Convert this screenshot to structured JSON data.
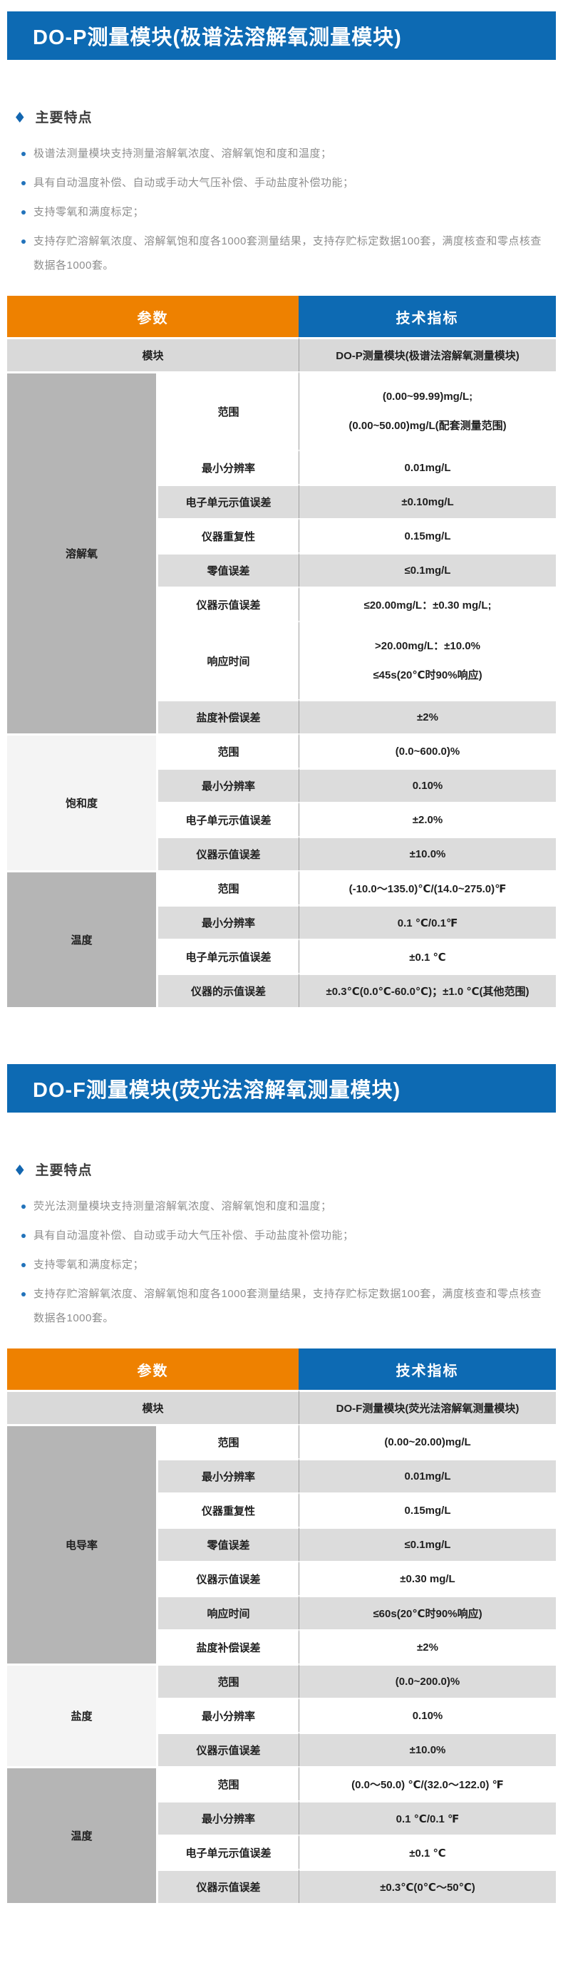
{
  "colors": {
    "primary_blue": "#0d6ab3",
    "header_orange": "#ee8100",
    "row_gray": "#dcdcdc",
    "module_row_gray": "#d9d9d9",
    "group_dark_gray": "#b5b5b5",
    "group_light_gray": "#f4f4f4",
    "feature_text_gray": "#8e8e8e"
  },
  "sections": [
    {
      "banner": "DO-P测量模块(极谱法溶解氧测量模块)",
      "features_title": "主要特点",
      "features": [
        "极谱法测量模块支持测量溶解氧浓度、溶解氧饱和度和温度；",
        "具有自动温度补偿、自动或手动大气压补偿、手动盐度补偿功能；",
        "支持零氧和满度标定；",
        "支持存贮溶解氧浓度、溶解氧饱和度各1000套测量结果，支持存贮标定数据100套，满度核查和零点核查数据各1000套。"
      ],
      "table": {
        "headers": [
          "参数",
          "技术指标"
        ],
        "module_row": {
          "param": "模块",
          "value": "DO-P测量模块(极谱法溶解氧测量模块)"
        },
        "groups": [
          {
            "name": "溶解氧",
            "shade": "dark",
            "rows": [
              {
                "param": "范围",
                "value_lines": [
                  "(0.00~99.99)mg/L;",
                  "(0.00~50.00)mg/L(配套测量范围)"
                ],
                "bg": "white",
                "tall": true
              },
              {
                "param": "最小分辨率",
                "value_lines": [
                  "0.01mg/L"
                ],
                "bg": "white"
              },
              {
                "param": "电子单元示值误差",
                "value_lines": [
                  "±0.10mg/L"
                ],
                "bg": "gray"
              },
              {
                "param": "仪器重复性",
                "value_lines": [
                  "0.15mg/L"
                ],
                "bg": "white"
              },
              {
                "param": "零值误差",
                "value_lines": [
                  "≤0.1mg/L"
                ],
                "bg": "gray"
              },
              {
                "param": "仪器示值误差",
                "value_lines": [
                  "≤20.00mg/L：±0.30 mg/L;"
                ],
                "bg": "white"
              },
              {
                "param": "响应时间",
                "value_lines": [
                  ">20.00mg/L：±10.0%",
                  "≤45s(20℃时90%响应)"
                ],
                "bg": "white",
                "tall": true
              },
              {
                "param": "盐度补偿误差",
                "value_lines": [
                  "±2%"
                ],
                "bg": "gray"
              }
            ]
          },
          {
            "name": "饱和度",
            "shade": "light",
            "rows": [
              {
                "param": "范围",
                "value_lines": [
                  "(0.0~600.0)%"
                ],
                "bg": "white"
              },
              {
                "param": "最小分辨率",
                "value_lines": [
                  "0.10%"
                ],
                "bg": "gray"
              },
              {
                "param": "电子单元示值误差",
                "value_lines": [
                  "±2.0%"
                ],
                "bg": "white"
              },
              {
                "param": "仪器示值误差",
                "value_lines": [
                  "±10.0%"
                ],
                "bg": "gray"
              }
            ]
          },
          {
            "name": "温度",
            "shade": "dark",
            "rows": [
              {
                "param": "范围",
                "value_lines": [
                  "(-10.0～135.0)℃/(14.0~275.0)℉"
                ],
                "bg": "white"
              },
              {
                "param": "最小分辨率",
                "value_lines": [
                  "0.1 ℃/0.1℉"
                ],
                "bg": "gray"
              },
              {
                "param": "电子单元示值误差",
                "value_lines": [
                  "±0.1 ℃"
                ],
                "bg": "white"
              },
              {
                "param": "仪器的示值误差",
                "value_lines": [
                  "±0.3℃(0.0℃-60.0℃)；±1.0 ℃(其他范围)"
                ],
                "bg": "gray"
              }
            ]
          }
        ]
      }
    },
    {
      "banner": "DO-F测量模块(荧光法溶解氧测量模块)",
      "features_title": "主要特点",
      "features": [
        "荧光法测量模块支持测量溶解氧浓度、溶解氧饱和度和温度；",
        "具有自动温度补偿、自动或手动大气压补偿、手动盐度补偿功能；",
        "支持零氧和满度标定；",
        "支持存贮溶解氧浓度、溶解氧饱和度各1000套测量结果，支持存贮标定数据100套，满度核查和零点核查数据各1000套。"
      ],
      "table": {
        "headers": [
          "参数",
          "技术指标"
        ],
        "module_row": {
          "param": "模块",
          "value": "DO-F测量模块(荧光法溶解氧测量模块)"
        },
        "groups": [
          {
            "name": "电导率",
            "shade": "dark",
            "rows": [
              {
                "param": "范围",
                "value_lines": [
                  "(0.00~20.00)mg/L"
                ],
                "bg": "white"
              },
              {
                "param": "最小分辨率",
                "value_lines": [
                  "0.01mg/L"
                ],
                "bg": "gray"
              },
              {
                "param": "仪器重复性",
                "value_lines": [
                  "0.15mg/L"
                ],
                "bg": "white"
              },
              {
                "param": "零值误差",
                "value_lines": [
                  "≤0.1mg/L"
                ],
                "bg": "gray"
              },
              {
                "param": "仪器示值误差",
                "value_lines": [
                  "±0.30 mg/L"
                ],
                "bg": "white"
              },
              {
                "param": "响应时间",
                "value_lines": [
                  "≤60s(20℃时90%响应)"
                ],
                "bg": "gray"
              },
              {
                "param": "盐度补偿误差",
                "value_lines": [
                  "±2%"
                ],
                "bg": "white"
              }
            ]
          },
          {
            "name": "盐度",
            "shade": "light",
            "rows": [
              {
                "param": "范围",
                "value_lines": [
                  "(0.0~200.0)%"
                ],
                "bg": "gray"
              },
              {
                "param": "最小分辨率",
                "value_lines": [
                  "0.10%"
                ],
                "bg": "white"
              },
              {
                "param": "仪器示值误差",
                "value_lines": [
                  "±10.0%"
                ],
                "bg": "gray"
              }
            ]
          },
          {
            "name": "温度",
            "shade": "dark",
            "rows": [
              {
                "param": "范围",
                "value_lines": [
                  "(0.0～50.0) ℃/(32.0～122.0) ℉"
                ],
                "bg": "white"
              },
              {
                "param": "最小分辨率",
                "value_lines": [
                  "0.1 ℃/0.1 ℉"
                ],
                "bg": "gray"
              },
              {
                "param": "电子单元示值误差",
                "value_lines": [
                  "±0.1 ℃"
                ],
                "bg": "white"
              },
              {
                "param": "仪器示值误差",
                "value_lines": [
                  "±0.3℃(0℃～50℃)"
                ],
                "bg": "gray"
              }
            ]
          }
        ]
      }
    }
  ]
}
